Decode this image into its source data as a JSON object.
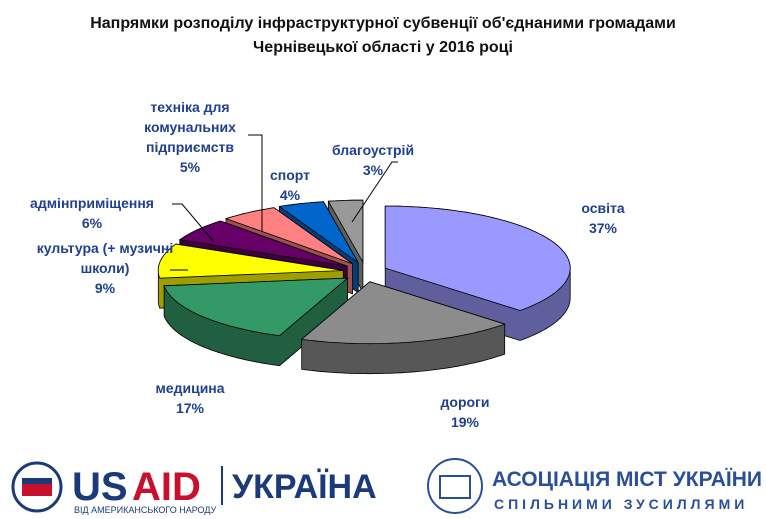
{
  "chart_data": {
    "type": "pie3d",
    "title": "Напрямки розподілу інфраструктурної субвенції об'єднаними громадами Чернівецької області  у 2016 році",
    "categories": [
      "освіта",
      "дороги",
      "медицина",
      "культура (+ музичні школи)",
      "адмінприміщення",
      "техніка для комунальних підприємств",
      "спорт",
      "благоустрій"
    ],
    "values": [
      37,
      19,
      17,
      9,
      6,
      5,
      4,
      3
    ],
    "value_labels": [
      "37%",
      "19%",
      "17%",
      "9%",
      "6%",
      "5%",
      "4%",
      "3%"
    ],
    "colors": [
      "#9999ff",
      "#8c8c8c",
      "#339966",
      "#ffff00",
      "#660066",
      "#ff8080",
      "#0066cc",
      "#999999"
    ]
  },
  "footer": {
    "usaid_us": "US",
    "usaid_aid": "AID",
    "usaid_country": "УКРАЇНА",
    "usaid_tagline": "ВІД АМЕРИКАНСЬКОГО НАРОДУ",
    "auc_name": "АСОЦІАЦІЯ МІСТ УКРАЇНИ",
    "auc_motto": "СПІЛЬНИМИ ЗУСИЛЛЯМИ"
  }
}
